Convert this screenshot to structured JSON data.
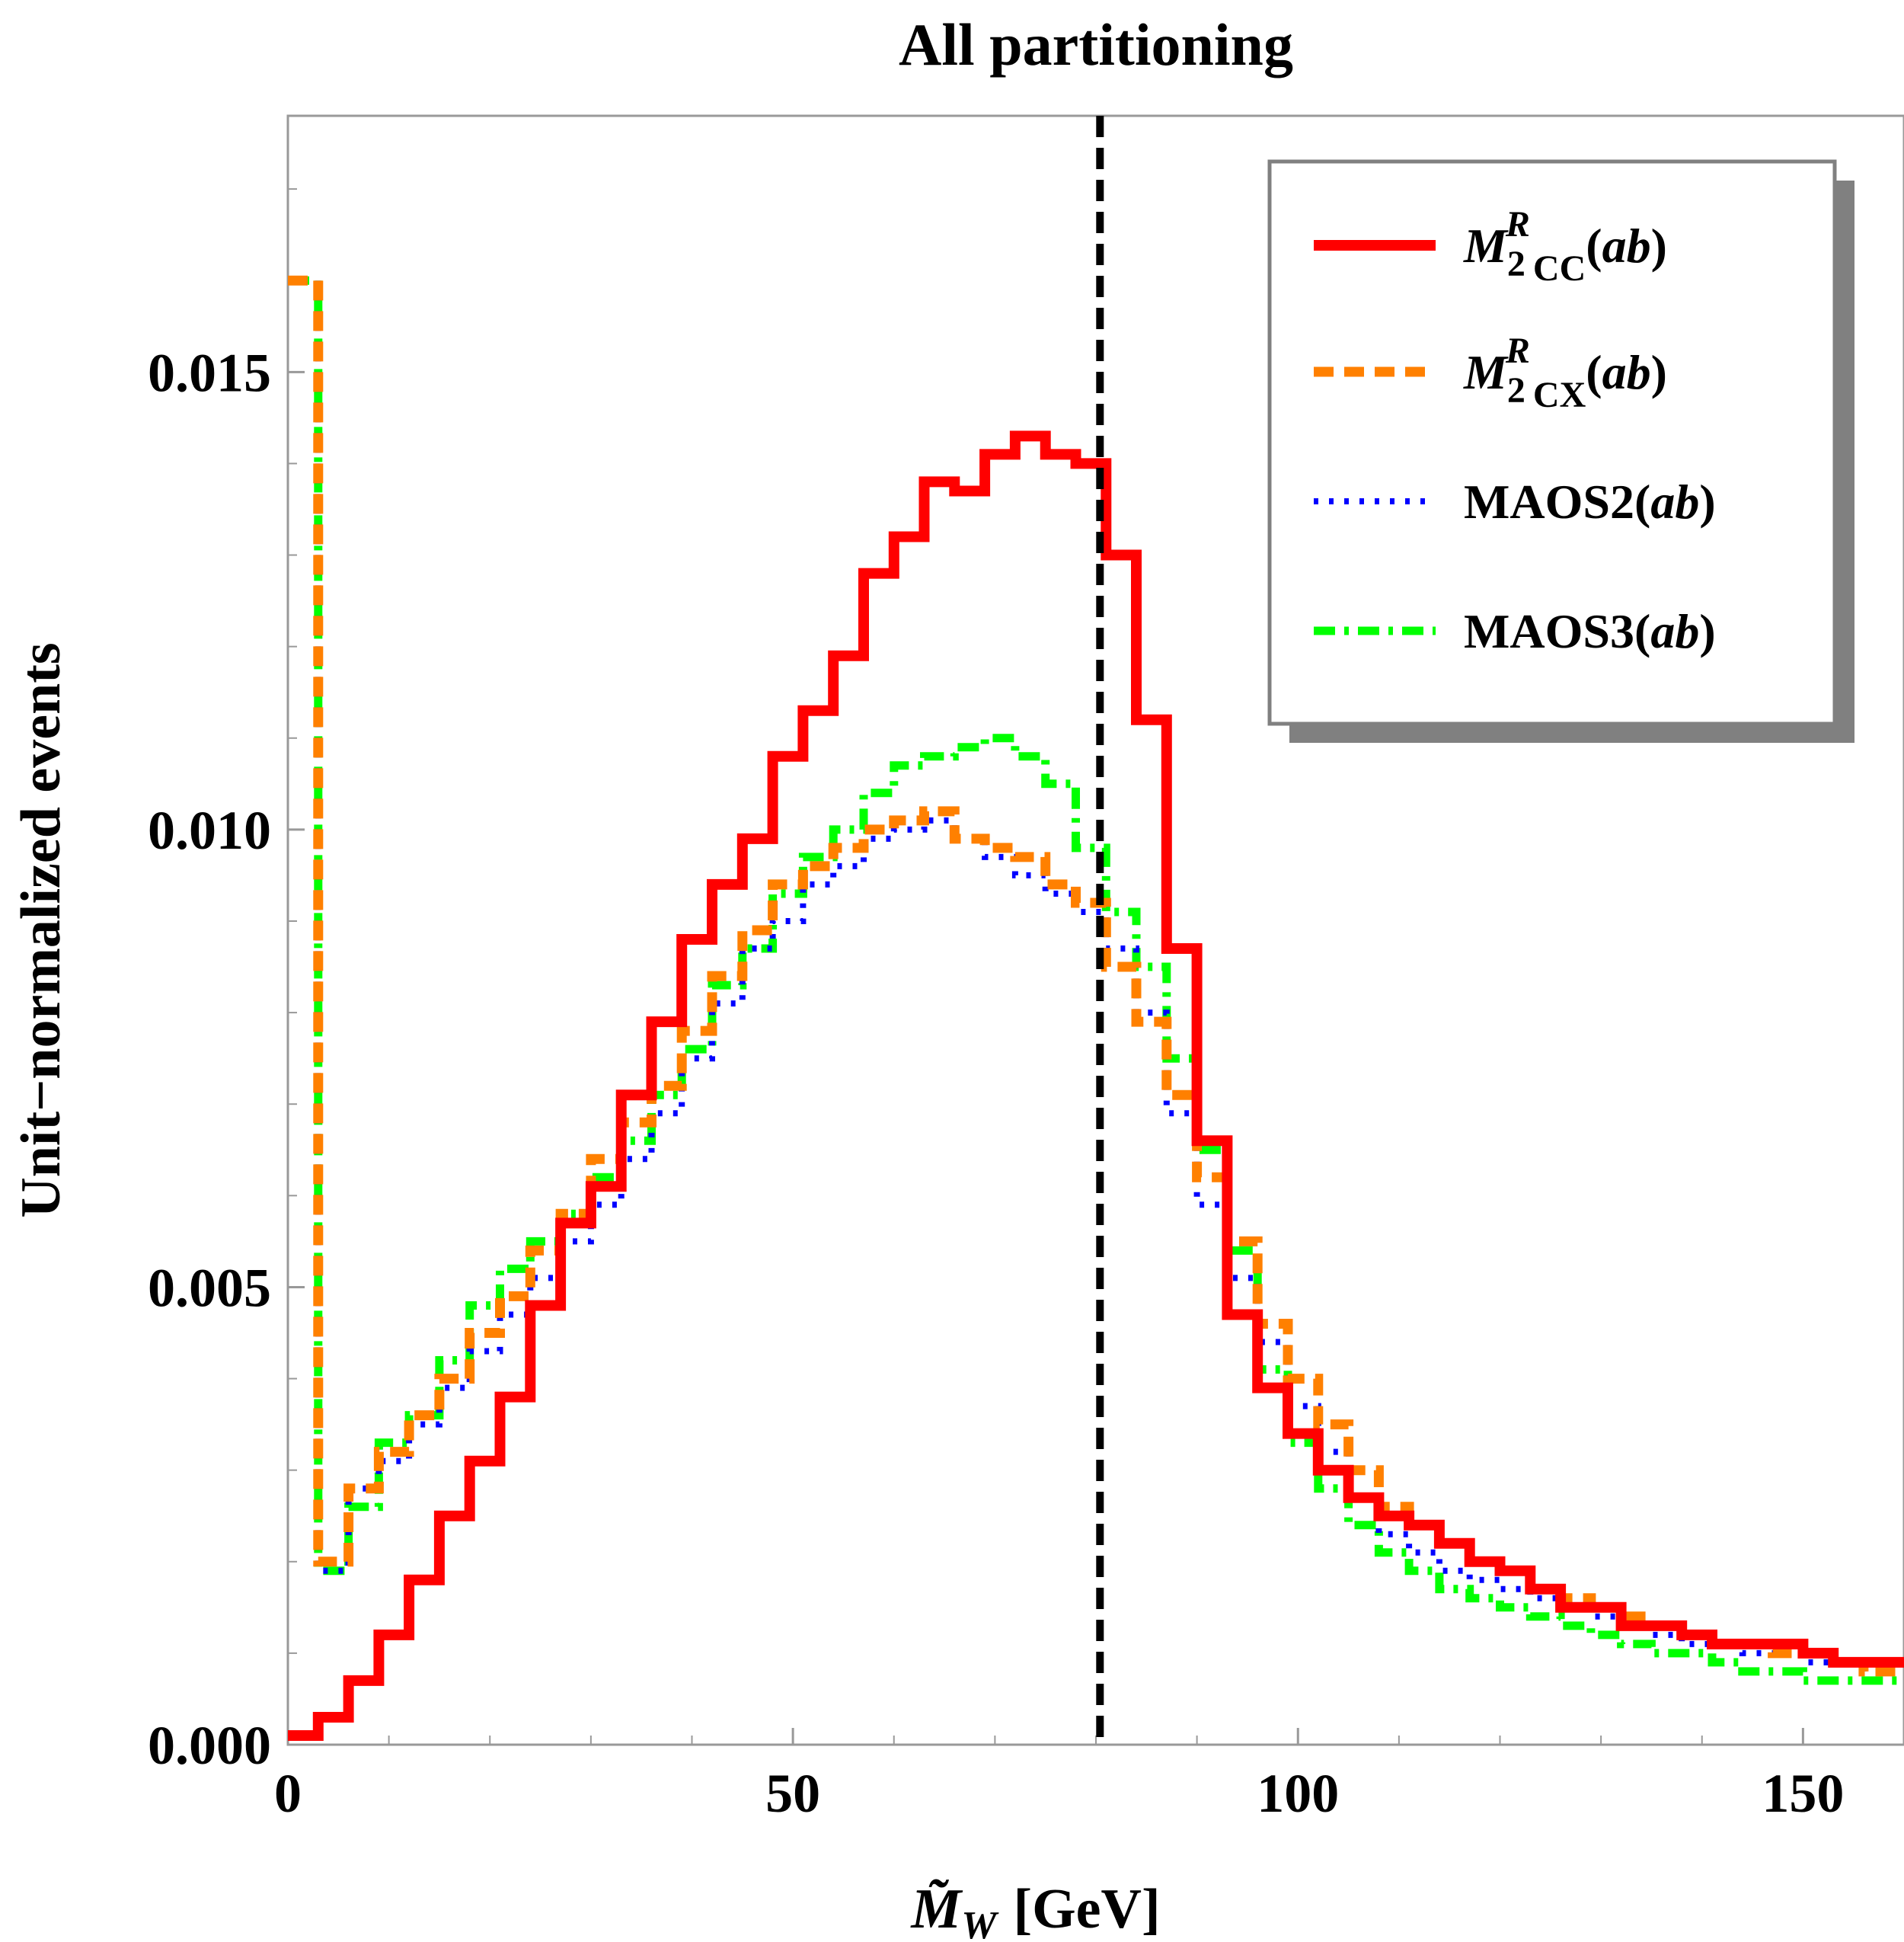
{
  "chart_data": {
    "type": "line",
    "title": "All partitioning",
    "xlabel": "M̃W [GeV]",
    "xlabel_symbol": "M̃",
    "xlabel_subscript": "W",
    "xlabel_unit": "[GeV]",
    "ylabel": "Unit−normalized events",
    "xlim": [
      0,
      160
    ],
    "ylim": [
      0,
      0.0178
    ],
    "x_ticks": [
      0,
      50,
      100,
      150
    ],
    "x_tick_labels": [
      "0",
      "50",
      "100",
      "150"
    ],
    "y_ticks": [
      0,
      0.005,
      0.01,
      0.015
    ],
    "y_tick_labels": [
      "0.000",
      "0.005",
      "0.010",
      "0.015"
    ],
    "reference_line": {
      "x": 80.4,
      "style": "dashed",
      "color": "#000000"
    },
    "bin_edges": [
      0,
      3,
      6,
      9,
      12,
      15,
      18,
      21,
      24,
      27,
      30,
      33,
      36,
      39,
      42,
      45,
      48,
      51,
      54,
      57,
      60,
      63,
      66,
      69,
      72,
      75,
      78,
      81,
      84,
      87,
      90,
      93,
      96,
      99,
      102,
      105,
      108,
      111,
      114,
      117,
      120,
      123,
      126,
      129,
      132,
      135,
      138,
      141,
      144,
      147,
      150,
      153,
      156,
      160
    ],
    "series": [
      {
        "name": "M2CC^R(ab)",
        "legend_main": "M",
        "legend_sup": "R",
        "legend_sub": "2",
        "legend_subtag": "CC",
        "legend_arg": "(ab)",
        "color": "#ff0000",
        "style": "solid",
        "values": [
          0.0001,
          0.0003,
          0.0007,
          0.0012,
          0.0018,
          0.0025,
          0.0031,
          0.0038,
          0.0048,
          0.0057,
          0.0061,
          0.0071,
          0.0079,
          0.0088,
          0.0094,
          0.0099,
          0.0108,
          0.0113,
          0.0119,
          0.0128,
          0.0132,
          0.0138,
          0.0137,
          0.0141,
          0.0143,
          0.0141,
          0.014,
          0.013,
          0.0112,
          0.0087,
          0.0066,
          0.0047,
          0.0039,
          0.0034,
          0.003,
          0.0027,
          0.0025,
          0.0024,
          0.0022,
          0.002,
          0.0019,
          0.0017,
          0.0015,
          0.0015,
          0.0013,
          0.0013,
          0.0012,
          0.0011,
          0.0011,
          0.0011,
          0.001,
          0.0009,
          0.0009
        ]
      },
      {
        "name": "M2CX^R(ab)",
        "legend_main": "M",
        "legend_sup": "R",
        "legend_sub": "2",
        "legend_subtag": "CX",
        "legend_arg": "(ab)",
        "color": "#ff8000",
        "style": "dashed",
        "values": [
          0.016,
          0.002,
          0.0028,
          0.0032,
          0.0036,
          0.004,
          0.0045,
          0.0049,
          0.0054,
          0.0058,
          0.0064,
          0.0068,
          0.0072,
          0.0078,
          0.0084,
          0.0089,
          0.0094,
          0.0096,
          0.0098,
          0.01,
          0.0101,
          0.0102,
          0.0099,
          0.0098,
          0.0097,
          0.0094,
          0.0092,
          0.0085,
          0.0079,
          0.0071,
          0.0062,
          0.0055,
          0.0046,
          0.004,
          0.0035,
          0.003,
          0.0026,
          0.0024,
          0.0022,
          0.002,
          0.0019,
          0.0017,
          0.0016,
          0.0015,
          0.0014,
          0.0013,
          0.0012,
          0.0011,
          0.0011,
          0.001,
          0.001,
          0.0009,
          0.0008
        ]
      },
      {
        "name": "MAOS2(ab)",
        "legend_main": "MAOS2",
        "legend_arg": "(ab)",
        "color": "#0000ff",
        "style": "dotted",
        "values": [
          0.016,
          0.0019,
          0.0028,
          0.0031,
          0.0035,
          0.0039,
          0.0043,
          0.0047,
          0.0051,
          0.0055,
          0.0059,
          0.0064,
          0.0069,
          0.0075,
          0.0081,
          0.0087,
          0.009,
          0.0094,
          0.0096,
          0.0099,
          0.01,
          0.0101,
          0.0099,
          0.0097,
          0.0095,
          0.0093,
          0.0091,
          0.0087,
          0.008,
          0.0069,
          0.0059,
          0.0051,
          0.0044,
          0.0037,
          0.0032,
          0.0027,
          0.0023,
          0.0021,
          0.0019,
          0.0018,
          0.0017,
          0.0016,
          0.0015,
          0.0014,
          0.0013,
          0.0012,
          0.0011,
          0.0011,
          0.001,
          0.001,
          0.0009,
          0.0009,
          0.0008
        ]
      },
      {
        "name": "MAOS3(ab)",
        "legend_main": "MAOS3",
        "legend_arg": "(ab)",
        "color": "#00ff00",
        "style": "dashdot",
        "values": [
          0.016,
          0.0019,
          0.0026,
          0.0033,
          0.0036,
          0.0042,
          0.0048,
          0.0052,
          0.0055,
          0.0058,
          0.0062,
          0.0066,
          0.0071,
          0.0076,
          0.0083,
          0.0087,
          0.0093,
          0.0097,
          0.01,
          0.0104,
          0.0107,
          0.0108,
          0.0109,
          0.011,
          0.0108,
          0.0105,
          0.0098,
          0.0091,
          0.0085,
          0.0075,
          0.0065,
          0.0054,
          0.0041,
          0.0033,
          0.0028,
          0.0024,
          0.0021,
          0.0019,
          0.0017,
          0.0016,
          0.0015,
          0.0014,
          0.0013,
          0.0012,
          0.0011,
          0.001,
          0.001,
          0.0009,
          0.0008,
          0.0008,
          0.0007,
          0.0007,
          0.0007
        ]
      }
    ],
    "legend_position": "top-right"
  }
}
